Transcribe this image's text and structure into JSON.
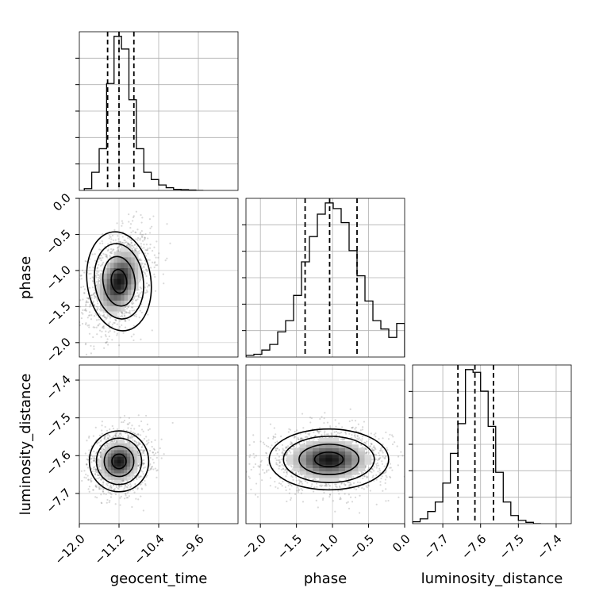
{
  "chart_data": {
    "type": "corner",
    "parameters": [
      "geocent_time",
      "phase",
      "luminosity_distance"
    ],
    "grid": true,
    "axes": {
      "geocent_time": {
        "range": [
          -12.0,
          -8.8
        ],
        "ticks": [
          -12.0,
          -11.2,
          -10.4,
          -9.6
        ],
        "tick_labels": [
          "−12.0",
          "−11.2",
          "−10.4",
          "−9.6"
        ]
      },
      "phase": {
        "range": [
          -2.2,
          0.0
        ],
        "ticks": [
          -2.0,
          -1.5,
          -1.0,
          -0.5,
          0.0
        ],
        "tick_labels": [
          "−2.0",
          "−1.5",
          "−1.0",
          "−0.5",
          "0.0"
        ]
      },
      "luminosity_distance": {
        "range": [
          -7.78,
          -7.36
        ],
        "ticks": [
          -7.7,
          -7.6,
          -7.5,
          -7.4
        ],
        "tick_labels": [
          "−7.7",
          "−7.6",
          "−7.5",
          "−7.4"
        ]
      }
    },
    "marginals": {
      "geocent_time": {
        "bin_edges": [
          -11.9,
          -11.75,
          -11.6,
          -11.45,
          -11.3,
          -11.15,
          -11.0,
          -10.85,
          -10.7,
          -10.55,
          -10.4,
          -10.25,
          -10.1,
          -9.95,
          -9.8,
          -9.65,
          -9.5
        ],
        "counts": [
          0.1,
          1.0,
          2.3,
          5.9,
          8.5,
          7.8,
          5.0,
          2.3,
          1.0,
          0.6,
          0.3,
          0.15,
          0.06,
          0.04,
          0.02,
          0.0
        ],
        "quantiles": [
          -11.43,
          -11.2,
          -10.9
        ]
      },
      "phase": {
        "bin_edges": [
          -2.2,
          -2.09,
          -1.98,
          -1.87,
          -1.76,
          -1.65,
          -1.54,
          -1.43,
          -1.32,
          -1.21,
          -1.1,
          -0.99,
          -0.88,
          -0.77,
          -0.66,
          -0.55,
          -0.44,
          -0.33,
          -0.22,
          -0.11,
          0.0
        ],
        "counts": [
          0.06,
          0.1,
          0.25,
          0.45,
          0.9,
          1.3,
          2.2,
          3.4,
          4.3,
          5.1,
          5.5,
          5.3,
          4.8,
          3.8,
          2.9,
          2.0,
          1.3,
          1.0,
          0.7,
          1.2
        ],
        "quantiles": [
          -1.38,
          -1.04,
          -0.66
        ]
      },
      "luminosity_distance": {
        "bin_edges": [
          -7.78,
          -7.76,
          -7.74,
          -7.72,
          -7.7,
          -7.68,
          -7.66,
          -7.64,
          -7.62,
          -7.6,
          -7.58,
          -7.56,
          -7.54,
          -7.52,
          -7.5,
          -7.48,
          -7.46,
          -7.44
        ],
        "counts": [
          0.07,
          0.18,
          0.45,
          0.8,
          1.5,
          2.6,
          3.7,
          5.7,
          5.6,
          4.9,
          3.6,
          1.9,
          0.8,
          0.3,
          0.12,
          0.05,
          0.0
        ],
        "quantiles": [
          -7.66,
          -7.615,
          -7.566
        ]
      }
    },
    "joint": [
      {
        "x": "geocent_time",
        "y": "phase",
        "center": [
          -11.2,
          -1.15
        ],
        "spread": [
          0.28,
          0.3
        ],
        "correlation": 0.35,
        "scatter_count": 1500
      },
      {
        "x": "geocent_time",
        "y": "luminosity_distance",
        "center": [
          -11.2,
          -7.615
        ],
        "spread": [
          0.26,
          0.035
        ],
        "correlation": 0.1,
        "scatter_count": 1500
      },
      {
        "x": "phase",
        "y": "luminosity_distance",
        "center": [
          -1.05,
          -7.61
        ],
        "spread": [
          0.36,
          0.035
        ],
        "correlation": 0.0,
        "scatter_count": 1600
      }
    ]
  }
}
